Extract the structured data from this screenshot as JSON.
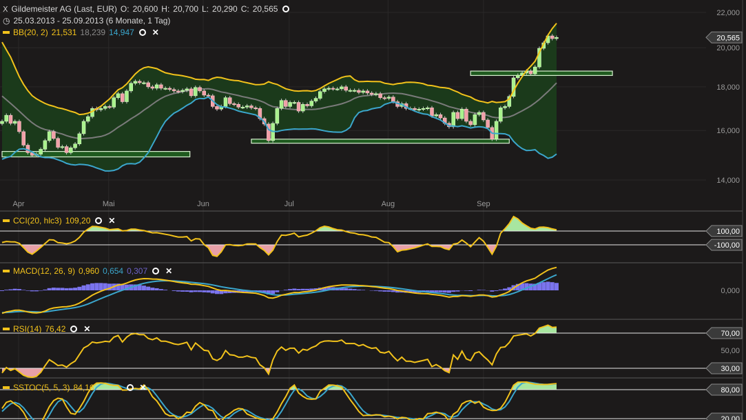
{
  "header": {
    "icon": "chart-bars-icon",
    "instrument": "Gildemeister AG (Last, EUR)",
    "ohlc": [
      {
        "label": "O:",
        "value": "20,600"
      },
      {
        "label": "H:",
        "value": "20,700"
      },
      {
        "label": "L:",
        "value": "20,290"
      },
      {
        "label": "C:",
        "value": "20,565"
      }
    ],
    "date_icon": "clock-icon",
    "date_range": "25.03.2013 - 25.09.2013 (6 Monate, 1 Tag)"
  },
  "indicators": {
    "bb": {
      "label": "BB(20, 2)",
      "upper": "21,531",
      "middle": "18,239",
      "lower": "14,947"
    },
    "cci": {
      "label": "CCI(20, hlc3)",
      "value": "109,20"
    },
    "macd": {
      "label": "MACD(12, 26, 9)",
      "macd": "0,960",
      "signal": "0,654",
      "histogram": "0,307"
    },
    "rsi": {
      "label": "RSI(14)",
      "value": "76,42"
    },
    "sstoc": {
      "label": "SSTOC(5, 5, 3)",
      "value": "84,16"
    }
  },
  "colors": {
    "background": "#1c1a1a",
    "bb_upper": "#f2c21b",
    "bb_middle": "#7a7a7a",
    "bb_lower": "#3ba6cc",
    "bb_fill": "#1b3a1b",
    "candle_up": "#a9f28c",
    "candle_down": "#f2a0a8",
    "macd_histogram": "#7b74ee",
    "overbought_fill": "#a8e6a0",
    "oversold_fill": "#e8a0a8"
  },
  "chart_data": {
    "type": "candlestick",
    "scale": "log",
    "ylim": [
      13500,
      22500
    ],
    "y_ticks": [
      "22,000",
      "20,000",
      "18,000",
      "16,000",
      "14,000"
    ],
    "y_tick_values": [
      22000,
      20000,
      18000,
      16000,
      14000
    ],
    "x_tick_labels": [
      "Apr",
      "Mai",
      "Jun",
      "Jul",
      "Aug",
      "Sep"
    ],
    "last_price_label": "20,565",
    "last_price": 20565,
    "close": [
      16400,
      16670,
      16310,
      16400,
      15950,
      15380,
      15070,
      14960,
      15010,
      15210,
      15570,
      15950,
      15660,
      15290,
      15320,
      15070,
      15270,
      15430,
      15860,
      16400,
      16610,
      16980,
      16920,
      16980,
      17070,
      17040,
      17480,
      17670,
      17290,
      17800,
      18170,
      18270,
      18200,
      18200,
      18000,
      17930,
      18100,
      17930,
      17930,
      17870,
      17800,
      17770,
      17830,
      17900,
      17570,
      17970,
      17800,
      17600,
      17570,
      17070,
      16950,
      17070,
      17480,
      17200,
      17170,
      17040,
      17040,
      17100,
      17010,
      16980,
      16520,
      16280,
      15570,
      16310,
      16980,
      17350,
      17070,
      17260,
      17260,
      16860,
      17170,
      17100,
      17320,
      17450,
      17770,
      17900,
      17930,
      17900,
      17900,
      18000,
      17830,
      17830,
      17830,
      17730,
      17800,
      17700,
      17640,
      17670,
      17480,
      17450,
      17510,
      17290,
      17070,
      17200,
      16980,
      16980,
      16920,
      16950,
      16980,
      17010,
      16640,
      16700,
      16550,
      16310,
      16160,
      16800,
      16520,
      16950,
      16400,
      16250,
      16700,
      16800,
      16460,
      16130,
      15630,
      16400,
      17010,
      17070,
      17540,
      18440,
      18570,
      18680,
      18780,
      18640,
      18990,
      19970,
      20270,
      20650,
      20500,
      20565
    ],
    "zones": [
      {
        "from_index": 0,
        "to_index": 43.7,
        "price_high": 15120,
        "price_low": 14900
      },
      {
        "from_index": 58,
        "to_index": 118,
        "price_high": 15630,
        "price_low": 15460
      },
      {
        "from_index": 109,
        "to_index": 142,
        "price_high": 18780,
        "price_low": 18560
      }
    ],
    "panes": {
      "cci": {
        "levels": [
          100,
          -100
        ],
        "level_labels": [
          "100,00",
          "-100,00"
        ]
      },
      "macd": {
        "levels": [
          0
        ],
        "level_labels": [
          "0,000"
        ]
      },
      "rsi": {
        "levels": [
          70,
          50,
          30
        ],
        "level_labels": [
          "70,00",
          "50,00",
          "30,00"
        ]
      },
      "sstoc": {
        "levels": [
          80,
          20
        ],
        "level_labels": [
          "80,00",
          "20,00"
        ]
      }
    }
  }
}
